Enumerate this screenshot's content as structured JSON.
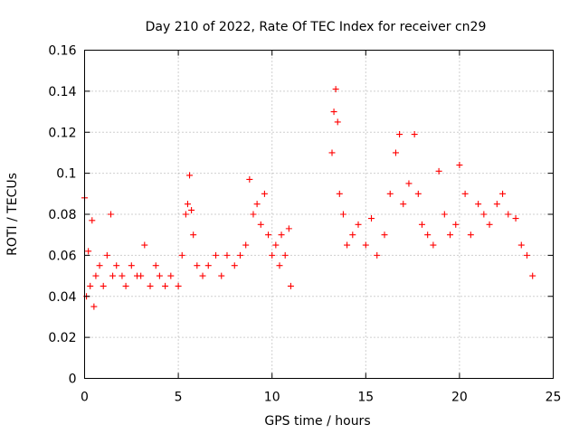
{
  "chart_data": {
    "type": "scatter",
    "title": "Day 210 of 2022, Rate Of TEC Index for receiver cn29",
    "xlabel": "GPS time / hours",
    "ylabel": "ROTI / TECUs",
    "xlim": [
      0,
      25
    ],
    "ylim": [
      0,
      0.16
    ],
    "xticks": [
      "0",
      "5",
      "10",
      "15",
      "20",
      "25"
    ],
    "yticks": [
      "0",
      "0.02",
      "0.04",
      "0.06",
      "0.08",
      "0.1",
      "0.12",
      "0.14",
      "0.16"
    ],
    "grid": true,
    "marker": "+",
    "color": "#ff0000",
    "series": [
      {
        "x": [
          0.0,
          0.1,
          0.2,
          0.3,
          0.4,
          0.5,
          0.6,
          0.8,
          1.0,
          1.2,
          1.4,
          1.5,
          1.7,
          2.0,
          2.2,
          2.5,
          2.8,
          3.0,
          3.2,
          3.5,
          3.8,
          4.0,
          4.3,
          4.6,
          5.0,
          5.2,
          5.4,
          5.5,
          5.6,
          5.7,
          5.8,
          6.0,
          6.3,
          6.6,
          7.0,
          7.3,
          7.6,
          8.0,
          8.3,
          8.6,
          8.8,
          9.0,
          9.2,
          9.4,
          9.6,
          9.8,
          10.0,
          10.2,
          10.4,
          10.5,
          10.7,
          10.9,
          11.0,
          13.2,
          13.3,
          13.4,
          13.5,
          13.6,
          13.8,
          14.0,
          14.3,
          14.6,
          15.0,
          15.3,
          15.6,
          16.0,
          16.3,
          16.6,
          16.8,
          17.0,
          17.3,
          17.6,
          17.8,
          18.0,
          18.3,
          18.6,
          18.9,
          19.2,
          19.5,
          19.8,
          20.0,
          20.3,
          20.6,
          21.0,
          21.3,
          21.6,
          22.0,
          22.3,
          22.6,
          23.0,
          23.3,
          23.6,
          23.9
        ],
        "y": [
          0.088,
          0.04,
          0.062,
          0.045,
          0.077,
          0.035,
          0.05,
          0.055,
          0.045,
          0.06,
          0.08,
          0.05,
          0.055,
          0.05,
          0.045,
          0.055,
          0.05,
          0.05,
          0.065,
          0.045,
          0.055,
          0.05,
          0.045,
          0.05,
          0.045,
          0.06,
          0.08,
          0.085,
          0.099,
          0.082,
          0.07,
          0.055,
          0.05,
          0.055,
          0.06,
          0.05,
          0.06,
          0.055,
          0.06,
          0.065,
          0.097,
          0.08,
          0.085,
          0.075,
          0.09,
          0.07,
          0.06,
          0.065,
          0.055,
          0.07,
          0.06,
          0.073,
          0.045,
          0.11,
          0.13,
          0.141,
          0.125,
          0.09,
          0.08,
          0.065,
          0.07,
          0.075,
          0.065,
          0.078,
          0.06,
          0.07,
          0.09,
          0.11,
          0.119,
          0.085,
          0.095,
          0.119,
          0.09,
          0.075,
          0.07,
          0.065,
          0.101,
          0.08,
          0.07,
          0.075,
          0.104,
          0.09,
          0.07,
          0.085,
          0.08,
          0.075,
          0.085,
          0.09,
          0.08,
          0.078,
          0.065,
          0.06,
          0.05
        ]
      }
    ]
  }
}
